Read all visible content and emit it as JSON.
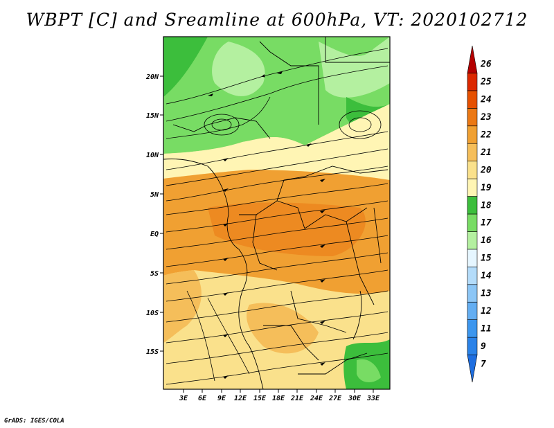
{
  "title": "WBPT [C] and Sreamline at 600hPa, VT: 2020102712",
  "credit": "GrADS: IGES/COLA",
  "map": {
    "lon_range": [
      0,
      36
    ],
    "lat_range": [
      -20,
      24
    ],
    "lat_labels": [
      "20N",
      "15N",
      "10N",
      "5N",
      "EQ",
      "5S",
      "10S",
      "15S"
    ],
    "lon_labels": [
      "3E",
      "6E",
      "9E",
      "12E",
      "15E",
      "18E",
      "21E",
      "24E",
      "27E",
      "30E",
      "33E"
    ]
  },
  "colorbar": {
    "labels": [
      "7",
      "9",
      "11",
      "12",
      "13",
      "14",
      "15",
      "16",
      "17",
      "18",
      "19",
      "20",
      "21",
      "22",
      "23",
      "24",
      "25",
      "26"
    ],
    "colors": [
      "#1e6ee0",
      "#2a82e8",
      "#3c96ee",
      "#64aef2",
      "#8cc6f6",
      "#b4dcfa",
      "#e6f6ff",
      "#b4f0a0",
      "#78dc64",
      "#3cbe3c",
      "#fff5b4",
      "#fae18c",
      "#f5be5a",
      "#f0a032",
      "#eb7814",
      "#e65000",
      "#dc2800",
      "#b40000"
    ]
  }
}
